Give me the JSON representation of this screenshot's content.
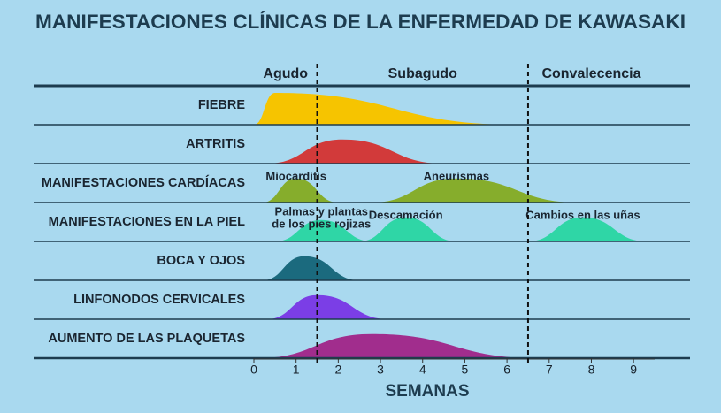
{
  "chart_data": {
    "type": "timeline",
    "title": "MANIFESTACIONES CLÍNICAS DE LA ENFERMEDAD DE KAWASAKI",
    "x_label": "SEMANAS",
    "xlim": [
      0,
      9.5
    ],
    "xticks": [
      0,
      1,
      2,
      3,
      4,
      5,
      6,
      7,
      8,
      9
    ],
    "phases": [
      {
        "label": "Agudo",
        "start": 0,
        "end": 1.5
      },
      {
        "label": "Subagudo",
        "start": 1.5,
        "end": 6.5
      },
      {
        "label": "Convalecencia",
        "start": 6.5,
        "end": 9.5
      }
    ],
    "rows": [
      {
        "label": "FIEBRE",
        "bumps": [
          {
            "color": "#f6c400",
            "start": 0,
            "peak": 0.5,
            "end": 6.2
          }
        ]
      },
      {
        "label": "ARTRITIS",
        "bumps": [
          {
            "color": "#d23a3a",
            "start": 0.3,
            "peak": 2.1,
            "end": 4.5
          }
        ]
      },
      {
        "label": "MANIFESTACIONES CARDÍACAS",
        "bumps": [
          {
            "label": [
              "Miocarditis"
            ],
            "color": "#86ad2c",
            "start": 0.2,
            "peak": 1,
            "end": 2
          },
          {
            "label": [
              "Aneurismas"
            ],
            "color": "#86ad2c",
            "start": 2.8,
            "peak": 4.8,
            "end": 7.7
          }
        ]
      },
      {
        "label": "MANIFESTACIONES EN LA PIEL",
        "bumps": [
          {
            "label": [
              "Palmas y plantas",
              "de los pies rojizas"
            ],
            "color": "#2fd6a6",
            "start": 0.5,
            "peak": 1.6,
            "end": 2.8
          },
          {
            "label": [
              "Descamación"
            ],
            "color": "#2fd6a6",
            "start": 2.5,
            "peak": 3.6,
            "end": 4.8
          },
          {
            "label": [
              "Cambios en las uñas"
            ],
            "color": "#2fd6a6",
            "start": 6.5,
            "peak": 7.8,
            "end": 9.3
          }
        ]
      },
      {
        "label": "BOCA Y OJOS",
        "bumps": [
          {
            "color": "#1b6a7e",
            "start": 0.2,
            "peak": 1.2,
            "end": 2.5
          }
        ]
      },
      {
        "label": "LINFONODOS CERVICALES",
        "bumps": [
          {
            "color": "#7b3ee6",
            "start": 0.3,
            "peak": 1.5,
            "end": 3.2
          }
        ]
      },
      {
        "label": "AUMENTO DE LAS PLAQUETAS",
        "bumps": [
          {
            "color": "#a12d8d",
            "start": 0.1,
            "peak": 2.8,
            "end": 6.7
          }
        ]
      }
    ]
  }
}
